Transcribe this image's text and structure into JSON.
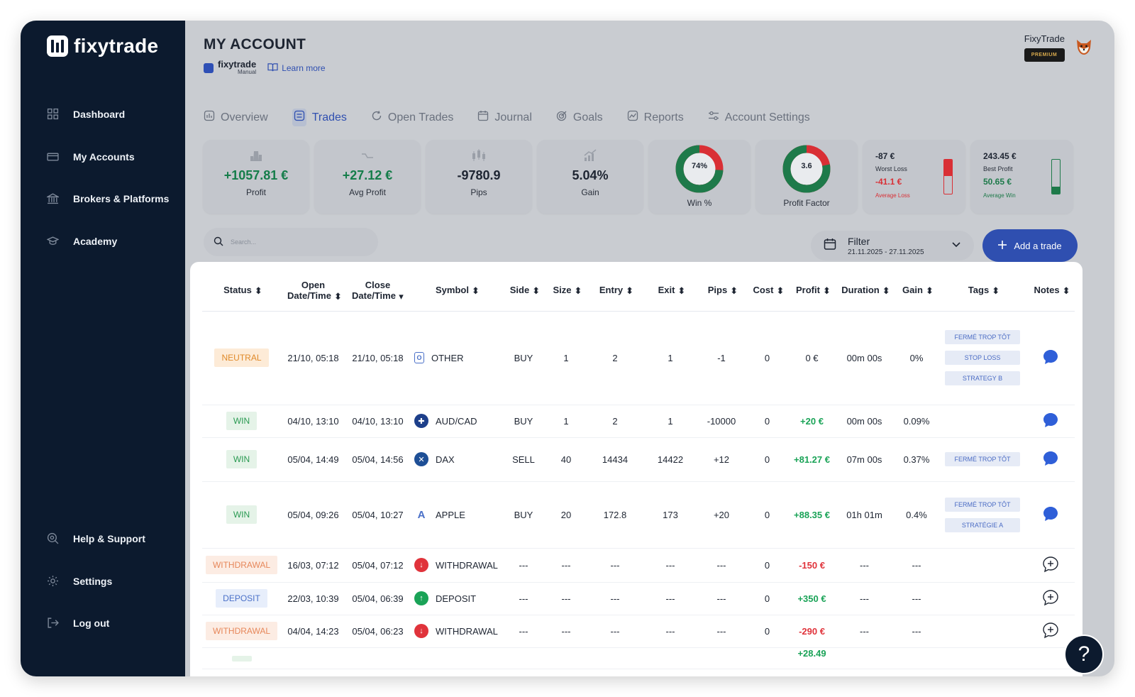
{
  "brand": {
    "name": "fixytrade"
  },
  "sidebar": {
    "top_items": [
      {
        "label": "Dashboard",
        "icon": "grid-icon"
      },
      {
        "label": "My Accounts",
        "icon": "card-icon"
      },
      {
        "label": "Brokers & Platforms",
        "icon": "bank-icon"
      },
      {
        "label": "Academy",
        "icon": "graduation-cap-icon"
      }
    ],
    "bottom_items": [
      {
        "label": "Help & Support",
        "icon": "support-icon"
      },
      {
        "label": "Settings",
        "icon": "gear-icon"
      },
      {
        "label": "Log out",
        "icon": "logout-icon"
      }
    ]
  },
  "header": {
    "title": "MY ACCOUNT",
    "sub_brand": "fixytrade",
    "sub_brand_type": "Manual",
    "learn_more": "Learn more",
    "user_name": "FixyTrade",
    "badge": "PREMIUM"
  },
  "tabs": [
    {
      "label": "Overview",
      "active": false
    },
    {
      "label": "Trades",
      "active": true
    },
    {
      "label": "Open Trades",
      "active": false
    },
    {
      "label": "Journal",
      "active": false
    },
    {
      "label": "Goals",
      "active": false
    },
    {
      "label": "Reports",
      "active": false
    },
    {
      "label": "Account Settings",
      "active": false
    }
  ],
  "stats": {
    "profit": {
      "value": "+1057.81 €",
      "label": "Profit"
    },
    "avg_profit": {
      "value": "+27.12 €",
      "label": "Avg Profit"
    },
    "pips": {
      "value": "-9780.9",
      "label": "Pips"
    },
    "gain": {
      "value": "5.04%",
      "label": "Gain"
    },
    "win": {
      "value": "74%",
      "label": "Win %",
      "fraction": 0.74
    },
    "profit_factor": {
      "value": "3.6",
      "label": "Profit Factor",
      "fraction": 0.78
    },
    "worst": {
      "value": "-87 €",
      "label": "Worst Loss",
      "avg_value": "-41.1 €",
      "avg_label": "Average Loss",
      "fill": 0.47
    },
    "best": {
      "value": "243.45 €",
      "label": "Best Profit",
      "avg_value": "50.65 €",
      "avg_label": "Average Win",
      "fill": 0.21
    }
  },
  "colors": {
    "accent": "#2f4fb0",
    "sidebar": "#0c1a2e",
    "positive": "#1aa357",
    "negative": "#e0333b",
    "donut_green": "#1e7a4a",
    "donut_red": "#d92f35"
  },
  "search": {
    "placeholder": "Search..."
  },
  "filter": {
    "label": "Filter",
    "range": "21.11.2025 - 27.11.2025"
  },
  "add_button": {
    "label": "Add a trade"
  },
  "table": {
    "headers": [
      "Status",
      "Open Date/Time",
      "Close Date/Time",
      "Symbol",
      "Side",
      "Size",
      "Entry",
      "Exit",
      "Pips",
      "Cost",
      "Profit",
      "Duration",
      "Gain",
      "Tags",
      "Notes"
    ],
    "header_open_1": "Open",
    "header_open_2": "Date/Time",
    "header_close_1": "Close",
    "header_close_2": "Date/Time",
    "rows": [
      {
        "status": "NEUTRAL",
        "open": "21/10, 05:18",
        "close": "21/10, 05:18",
        "symbol": "OTHER",
        "side": "BUY",
        "size": "1",
        "entry": "2",
        "exit": "1",
        "pips": "-1",
        "cost": "0",
        "profit": "0 €",
        "duration": "00m 00s",
        "gain": "0%",
        "tags": [
          "FERMÉ TROP TÔT",
          "STOP LOSS",
          "STRATEGY B"
        ]
      },
      {
        "status": "WIN",
        "open": "04/10, 13:10",
        "close": "04/10, 13:10",
        "symbol": "AUD/CAD",
        "side": "BUY",
        "size": "1",
        "entry": "2",
        "exit": "1",
        "pips": "-10000",
        "cost": "0",
        "profit": "+20 €",
        "duration": "00m 00s",
        "gain": "0.09%",
        "tags": []
      },
      {
        "status": "WIN",
        "open": "05/04, 14:49",
        "close": "05/04, 14:56",
        "symbol": "DAX",
        "side": "SELL",
        "size": "40",
        "entry": "14434",
        "exit": "14422",
        "pips": "+12",
        "cost": "0",
        "profit": "+81.27 €",
        "duration": "07m 00s",
        "gain": "0.37%",
        "tags": [
          "FERMÉ TROP TÔT"
        ]
      },
      {
        "status": "WIN",
        "open": "05/04, 09:26",
        "close": "05/04, 10:27",
        "symbol": "APPLE",
        "side": "BUY",
        "size": "20",
        "entry": "172.8",
        "exit": "173",
        "pips": "+20",
        "cost": "0",
        "profit": "+88.35 €",
        "duration": "01h 01m",
        "gain": "0.4%",
        "tags": [
          "FERMÉ TROP TÔT",
          "STRATÉGIE A"
        ]
      },
      {
        "status": "WITHDRAWAL",
        "open": "16/03, 07:12",
        "close": "05/04, 07:12",
        "symbol": "WITHDRAWAL",
        "side": "---",
        "size": "---",
        "entry": "---",
        "exit": "---",
        "pips": "---",
        "cost": "0",
        "profit": "-150 €",
        "duration": "---",
        "gain": "---",
        "tags": []
      },
      {
        "status": "DEPOSIT",
        "open": "22/03, 10:39",
        "close": "05/04, 06:39",
        "symbol": "DEPOSIT",
        "side": "---",
        "size": "---",
        "entry": "---",
        "exit": "---",
        "pips": "---",
        "cost": "0",
        "profit": "+350 €",
        "duration": "---",
        "gain": "---",
        "tags": []
      },
      {
        "status": "WITHDRAWAL",
        "open": "04/04, 14:23",
        "close": "05/04, 06:23",
        "symbol": "WITHDRAWAL",
        "side": "---",
        "size": "---",
        "entry": "---",
        "exit": "---",
        "pips": "---",
        "cost": "0",
        "profit": "-290 €",
        "duration": "---",
        "gain": "---",
        "tags": []
      }
    ],
    "partial_profit": "+28.49"
  },
  "help_button": {
    "label": "?"
  }
}
